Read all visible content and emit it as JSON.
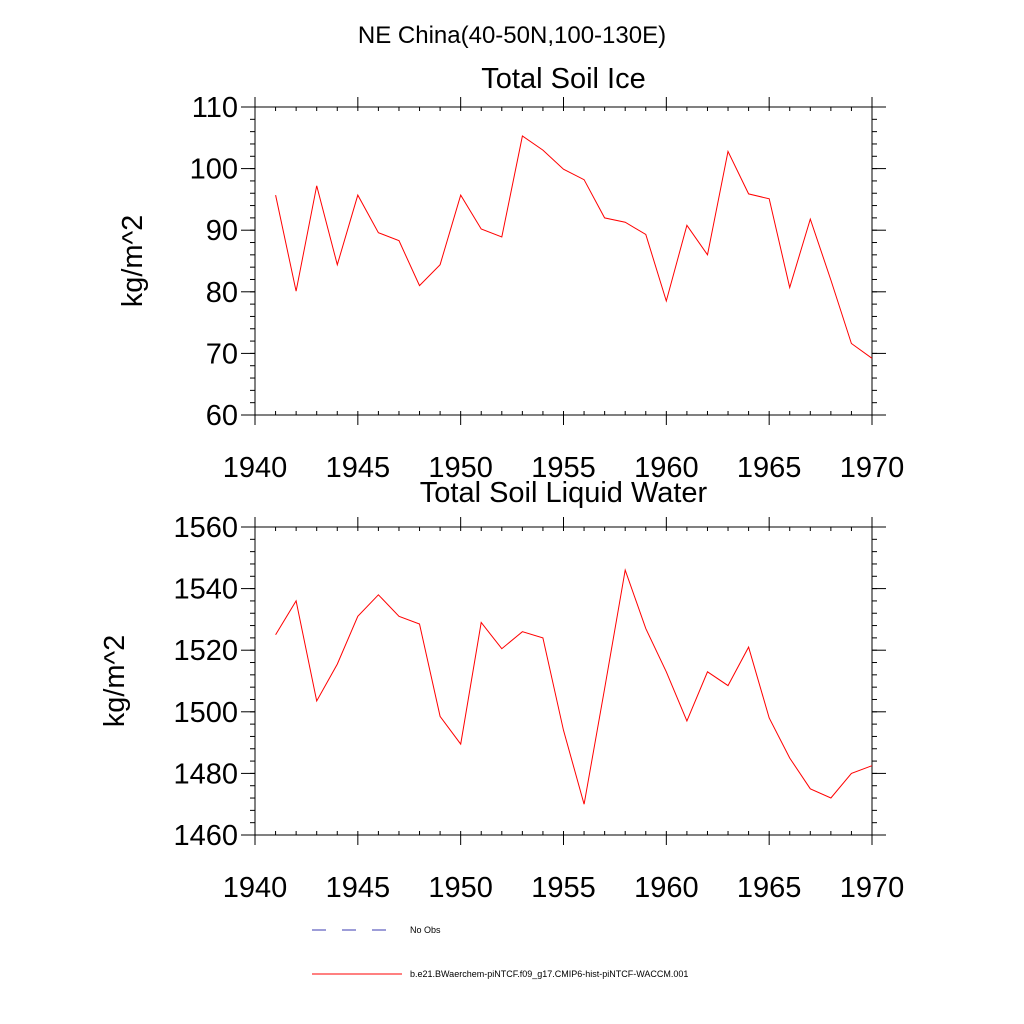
{
  "figure_title": "NE China(40-50N,100-130E)",
  "colors": {
    "model_line": "#ff0000",
    "obs_line": "#3b3bb0",
    "axes": "#000000"
  },
  "legend": {
    "obs_label": "No Obs",
    "model_label": "b.e21.BWaerchem-piNTCF.f09_g17.CMIP6-hist-piNTCF-WACCM.001"
  },
  "chart_data": [
    {
      "type": "line",
      "title": "Total Soil Ice",
      "xlabel": "",
      "ylabel": "kg/m^2",
      "xlim": [
        1940,
        1970
      ],
      "ylim": [
        60,
        110
      ],
      "xticks": [
        1940,
        1945,
        1950,
        1955,
        1960,
        1965,
        1970
      ],
      "yticks": [
        60,
        70,
        80,
        90,
        100,
        110
      ],
      "series": [
        {
          "x": [
            1941,
            1942,
            1943,
            1944,
            1945,
            1946,
            1947,
            1948,
            1949,
            1950,
            1951,
            1952,
            1953,
            1954,
            1955,
            1956,
            1957,
            1958,
            1959,
            1960,
            1961,
            1962,
            1963,
            1964,
            1965,
            1966,
            1967,
            1968,
            1969,
            1970
          ],
          "values": [
            95.7,
            80.1,
            97.2,
            84.4,
            95.7,
            89.6,
            88.3,
            81.0,
            84.4,
            95.7,
            90.2,
            88.9,
            105.3,
            103.0,
            99.9,
            98.2,
            92.0,
            91.3,
            89.3,
            78.5,
            90.8,
            86.0,
            102.8,
            95.9,
            95.1,
            80.7,
            91.8,
            81.9,
            71.6,
            69.2
          ]
        }
      ]
    },
    {
      "type": "line",
      "title": "Total Soil Liquid Water",
      "xlabel": "",
      "ylabel": "kg/m^2",
      "xlim": [
        1940,
        1970
      ],
      "ylim": [
        1460,
        1560
      ],
      "xticks": [
        1940,
        1945,
        1950,
        1955,
        1960,
        1965,
        1970
      ],
      "yticks": [
        1460,
        1480,
        1500,
        1520,
        1540,
        1560
      ],
      "series": [
        {
          "x": [
            1941,
            1942,
            1943,
            1944,
            1945,
            1946,
            1947,
            1948,
            1949,
            1950,
            1951,
            1952,
            1953,
            1954,
            1955,
            1956,
            1957,
            1958,
            1959,
            1960,
            1961,
            1962,
            1963,
            1964,
            1965,
            1966,
            1967,
            1968,
            1969,
            1970
          ],
          "values": [
            1525,
            1536,
            1503.5,
            1515.5,
            1531,
            1538,
            1531,
            1528.5,
            1498.5,
            1489.5,
            1529,
            1520.5,
            1526,
            1524,
            1494,
            1470,
            1507.5,
            1546,
            1527,
            1513,
            1497,
            1513,
            1508.5,
            1521,
            1498,
            1485,
            1475,
            1472,
            1480,
            1482.5
          ]
        }
      ]
    }
  ]
}
